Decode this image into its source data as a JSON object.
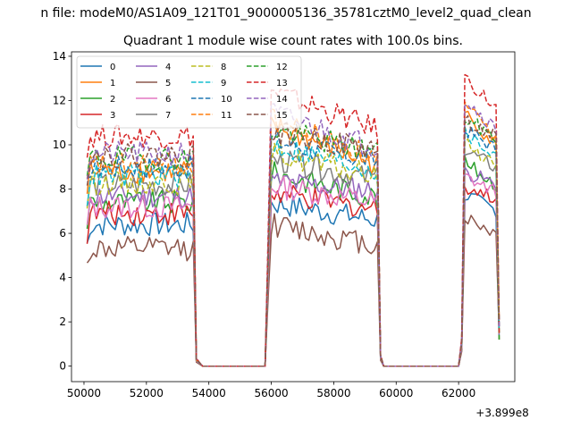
{
  "suptitle": "n file: modeM0/AS1A09_121T01_9000005136_35781cztM0_level2_quad_clean",
  "chart_data": {
    "type": "line",
    "title": "Quadrant 1 module wise count rates with 100.0s bins.",
    "xlabel": "",
    "ylabel": "",
    "x_offset_label": "+3.899e8",
    "xlim": [
      49600,
      63800
    ],
    "ylim": [
      -0.7,
      14.2
    ],
    "xticks": [
      50000,
      52000,
      54000,
      56000,
      58000,
      60000,
      62000
    ],
    "yticks": [
      0,
      2,
      4,
      6,
      8,
      10,
      12,
      14
    ],
    "segments": [
      {
        "start": 50100,
        "end": 53500,
        "fall_end": 53800
      },
      {
        "rise_start": 55800,
        "start": 56000,
        "end": 59400,
        "fall_end": 59600
      },
      {
        "rise_start": 62000,
        "start": 62200,
        "end": 63300
      }
    ],
    "x_start": 50100,
    "x_end": 63300,
    "bin_s": 100,
    "legend_position": "upper-left",
    "series": [
      {
        "name": "0",
        "color": "#1f77b4",
        "dash": "solid",
        "level": 6.4,
        "end_level": 7.6
      },
      {
        "name": "1",
        "color": "#ff7f0e",
        "dash": "solid",
        "level": 8.8,
        "end_level": 11.2
      },
      {
        "name": "2",
        "color": "#2ca02c",
        "dash": "solid",
        "level": 7.4,
        "end_level": 9.0
      },
      {
        "name": "3",
        "color": "#d62728",
        "dash": "solid",
        "level": 6.9,
        "end_level": 8.0
      },
      {
        "name": "4",
        "color": "#9467bd",
        "dash": "solid",
        "level": 7.7,
        "end_level": 8.6
      },
      {
        "name": "5",
        "color": "#8c564b",
        "dash": "solid",
        "level": 5.3,
        "end_level": 6.6
      },
      {
        "name": "6",
        "color": "#e377c2",
        "dash": "solid",
        "level": 7.2,
        "end_level": 8.4
      },
      {
        "name": "7",
        "color": "#7f7f7f",
        "dash": "solid",
        "level": 8.2,
        "end_level": 9.6
      },
      {
        "name": "8",
        "color": "#bcbd22",
        "dash": "dashed",
        "level": 8.3,
        "end_level": 9.9
      },
      {
        "name": "9",
        "color": "#17becf",
        "dash": "dashed",
        "level": 8.6,
        "end_level": 10.3
      },
      {
        "name": "10",
        "color": "#1f77b4",
        "dash": "dashed",
        "level": 9.0,
        "end_level": 10.5
      },
      {
        "name": "11",
        "color": "#ff7f0e",
        "dash": "dashed",
        "level": 9.1,
        "end_level": 11.5
      },
      {
        "name": "12",
        "color": "#2ca02c",
        "dash": "dashed",
        "level": 9.4,
        "end_level": 11.0
      },
      {
        "name": "13",
        "color": "#d62728",
        "dash": "dashed",
        "level": 10.4,
        "end_level": 12.8
      },
      {
        "name": "14",
        "color": "#9467bd",
        "dash": "dashed",
        "level": 9.6,
        "end_level": 11.8
      },
      {
        "name": "15",
        "color": "#8c564b",
        "dash": "dashed",
        "level": 9.5,
        "end_level": 10.9
      }
    ]
  }
}
